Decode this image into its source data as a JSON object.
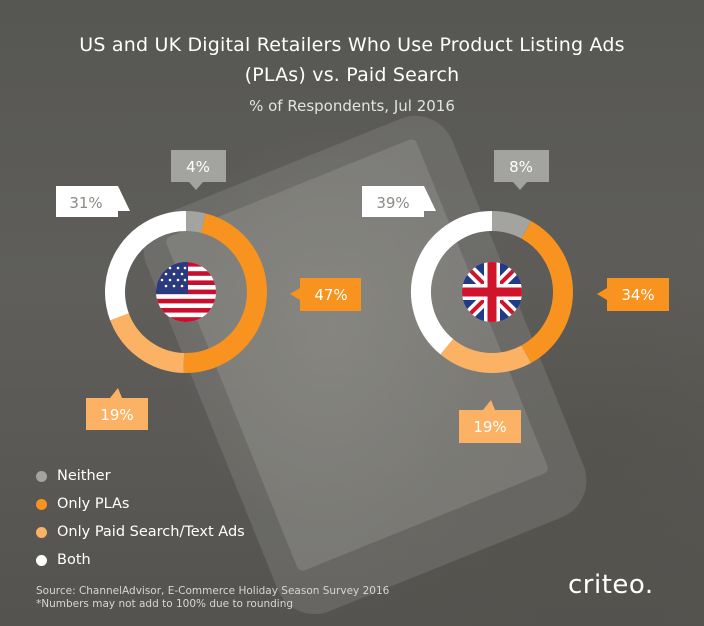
{
  "title_line1": "US and UK Digital Retailers Who Use Product Listing Ads",
  "title_line2": "(PLAs) vs. Paid Search",
  "subtitle": "% of Respondents, Jul 2016",
  "colors": {
    "neither": "#a3a3a0",
    "only_plas": "#f7931e",
    "only_paid_search": "#fbb264",
    "both": "#ffffff"
  },
  "chart_data": [
    {
      "type": "pie",
      "name": "US",
      "icon": "us-flag-icon",
      "categories": [
        "Neither",
        "Only PLAs",
        "Only Paid Search/Text Ads",
        "Both"
      ],
      "values": [
        4,
        47,
        19,
        31
      ],
      "labels": [
        "4%",
        "47%",
        "19%",
        "31%"
      ]
    },
    {
      "type": "pie",
      "name": "UK",
      "icon": "uk-flag-icon",
      "categories": [
        "Neither",
        "Only PLAs",
        "Only Paid Search/Text Ads",
        "Both"
      ],
      "values": [
        8,
        34,
        19,
        39
      ],
      "labels": [
        "8%",
        "34%",
        "19%",
        "39%"
      ]
    }
  ],
  "legend": [
    {
      "label": "Neither",
      "color": "#a3a3a0"
    },
    {
      "label": "Only PLAs",
      "color": "#f7931e"
    },
    {
      "label": "Only Paid Search/Text Ads",
      "color": "#fbb264"
    },
    {
      "label": "Both",
      "color": "#ffffff"
    }
  ],
  "source_line1": "Source: ChannelAdvisor, E-Commerce Holiday Season Survey 2016",
  "source_line2": "*Numbers may not add to 100% due to rounding",
  "brand": "criteo",
  "brand_mark": "."
}
